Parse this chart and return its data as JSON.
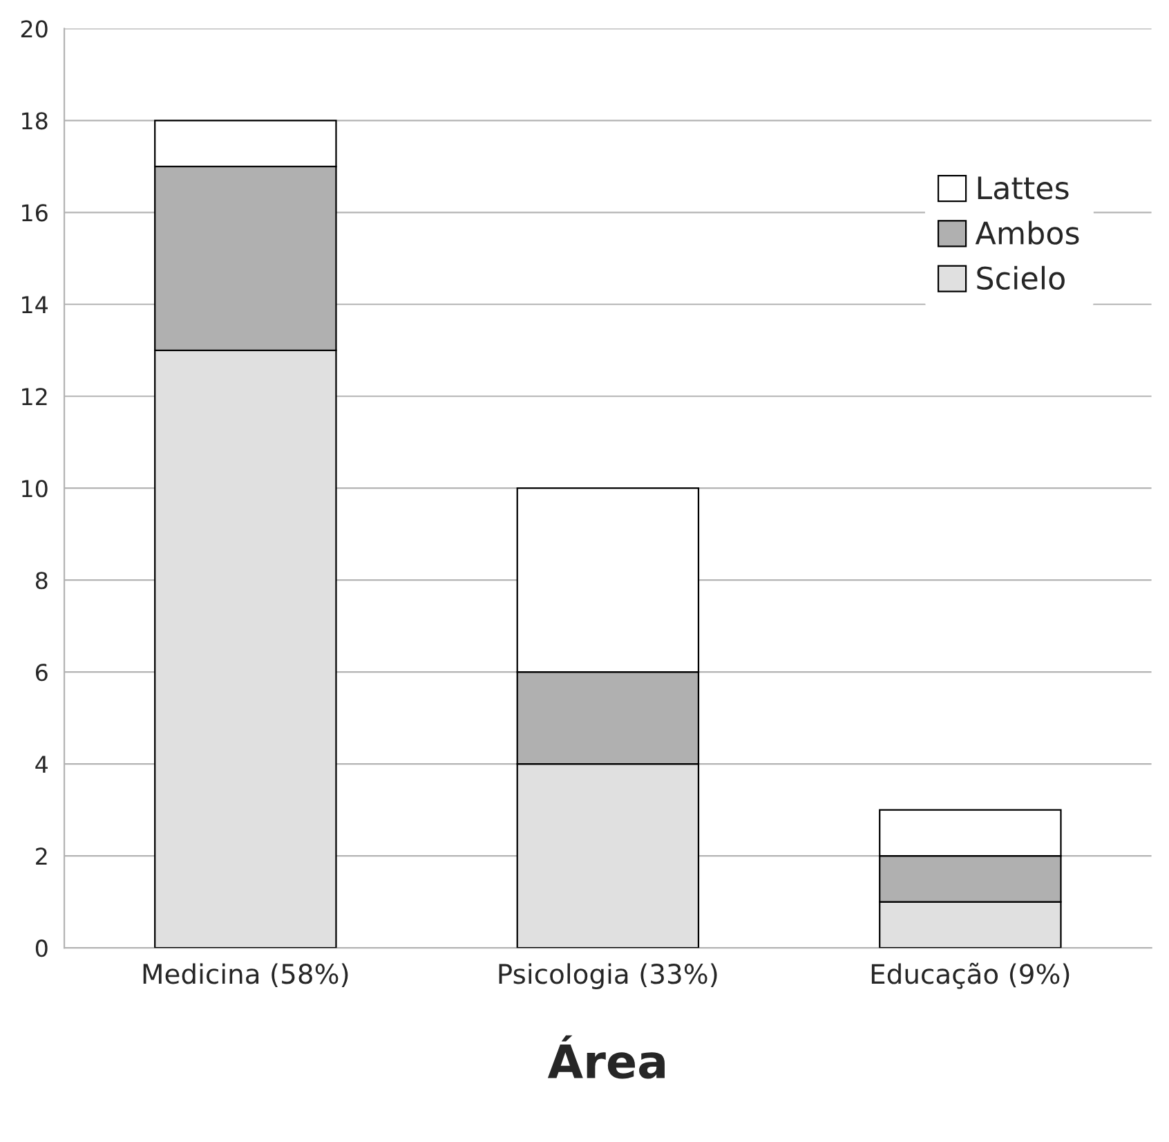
{
  "chart_data": {
    "type": "bar",
    "stacked": true,
    "xlabel": "Área",
    "categories": [
      "Medicina (58%)",
      "Psicologia (33%)",
      "Educação (9%)"
    ],
    "series": [
      {
        "name": "Scielo",
        "color": "#e0e0e0",
        "values": [
          13,
          4,
          1
        ]
      },
      {
        "name": "Ambos",
        "color": "#b0b0b0",
        "values": [
          4,
          2,
          1
        ]
      },
      {
        "name": "Lattes",
        "color": "#ffffff",
        "values": [
          1,
          4,
          1
        ]
      }
    ],
    "ylim": [
      0,
      20
    ],
    "yticks": [
      0,
      2,
      4,
      6,
      8,
      10,
      12,
      14,
      16,
      18,
      20
    ],
    "grid": "y",
    "legend": "top right"
  }
}
